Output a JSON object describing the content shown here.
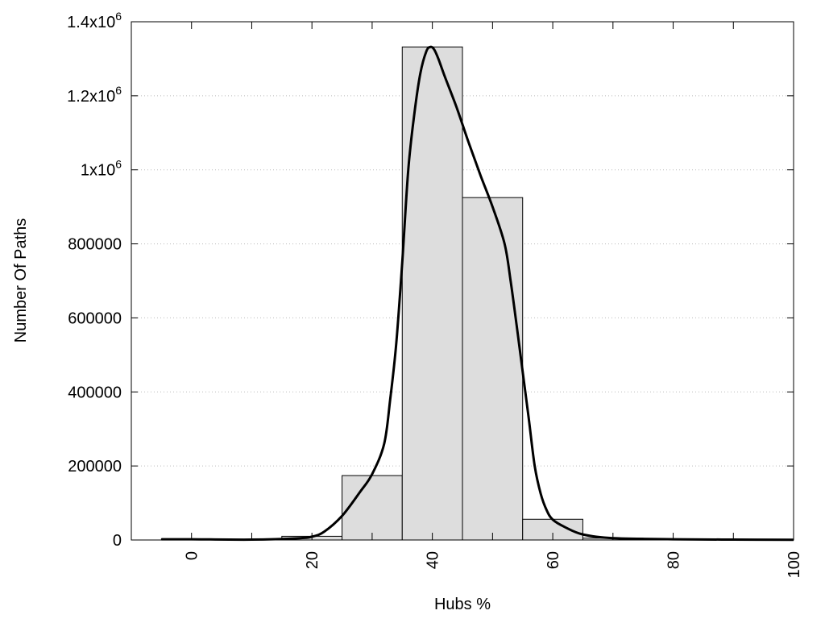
{
  "chart_data": {
    "type": "bar",
    "title": "",
    "xlabel": "Hubs %",
    "ylabel": "Number Of Paths",
    "xlim": [
      -10,
      100
    ],
    "ylim": [
      0,
      1400000
    ],
    "grid": "horizontal dotted",
    "bar_width": 10,
    "bar_color": "#dddddd",
    "line_color": "#000000",
    "x_tick_labels": [
      "0",
      "20",
      "40",
      "60",
      "80",
      "100"
    ],
    "x_tick_values": [
      0,
      20,
      40,
      60,
      80,
      100
    ],
    "x_minor_tick_values": [
      10,
      30,
      50,
      70,
      90
    ],
    "y_ticks": [
      {
        "value": 0,
        "base": "0",
        "exp": ""
      },
      {
        "value": 200000,
        "base": "200000",
        "exp": ""
      },
      {
        "value": 400000,
        "base": "400000",
        "exp": ""
      },
      {
        "value": 600000,
        "base": "600000",
        "exp": ""
      },
      {
        "value": 800000,
        "base": "800000",
        "exp": ""
      },
      {
        "value": 1000000,
        "base": "1x10",
        "exp": "6"
      },
      {
        "value": 1200000,
        "base": "1.2x10",
        "exp": "6"
      },
      {
        "value": 1400000,
        "base": "1.4x10",
        "exp": "6"
      }
    ],
    "bars": {
      "x": [
        0,
        10,
        20,
        30,
        40,
        50,
        60,
        70,
        80,
        90
      ],
      "values": [
        3000,
        1000,
        10000,
        174000,
        1332000,
        925000,
        56000,
        5000,
        3000,
        1000
      ]
    },
    "curve": {
      "x": [
        -5,
        0,
        10,
        18,
        20,
        22,
        25,
        28,
        30,
        32,
        33,
        34,
        35,
        36,
        37,
        38,
        39,
        39.7,
        40.3,
        41,
        42,
        44,
        46,
        48,
        50,
        52,
        53,
        54,
        55,
        56,
        57,
        58,
        59,
        60,
        62,
        65,
        70,
        80,
        90,
        100
      ],
      "values": [
        2000,
        2000,
        1000,
        5000,
        9000,
        22000,
        65000,
        130000,
        178000,
        260000,
        380000,
        530000,
        750000,
        1000000,
        1150000,
        1260000,
        1320000,
        1332000,
        1325000,
        1300000,
        1255000,
        1170000,
        1075000,
        985000,
        900000,
        800000,
        700000,
        580000,
        455000,
        330000,
        200000,
        125000,
        80000,
        55000,
        35000,
        15000,
        5000,
        2000,
        1000,
        500
      ]
    }
  }
}
